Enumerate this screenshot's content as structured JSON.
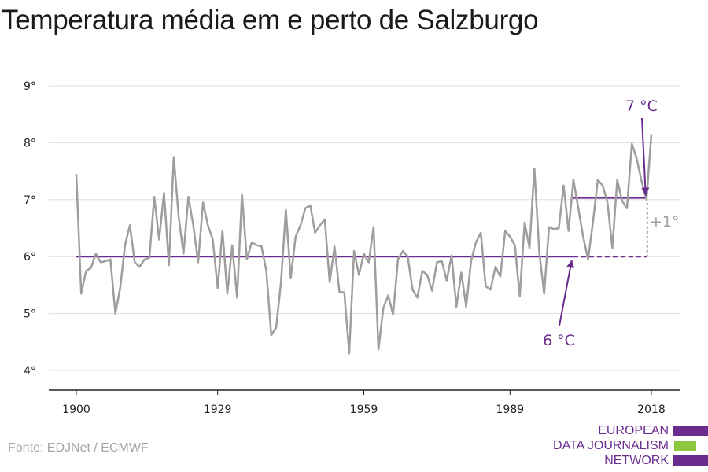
{
  "title": "Temperatura média em e perto de Salzburgo",
  "source": "Fonte: EDJNet / ECMWF",
  "logo": {
    "lines": [
      "EUROPEAN",
      "DATA JOURNALISM",
      "NETWORK"
    ],
    "colors": [
      "#6a2c8e",
      "#8dc63f",
      "#6a2c8e"
    ]
  },
  "colors": {
    "series": "#9e9e9e",
    "reference": "#6a2c8e",
    "grid": "#dddddd",
    "axis": "#222222"
  },
  "chart_data": {
    "type": "line",
    "title": "Temperatura média em e perto de Salzburgo",
    "xlabel": "",
    "ylabel": "",
    "xlim": [
      1900,
      2018
    ],
    "ylim": [
      4,
      9
    ],
    "x_ticks": [
      1900,
      1929,
      1959,
      1989,
      2018
    ],
    "y_ticks": [
      4,
      5,
      6,
      7,
      8,
      9
    ],
    "y_tick_suffix": "°",
    "grid": true,
    "legend": "none",
    "series": [
      {
        "color": "#9e9e9e",
        "x": [
          1900,
          1901,
          1902,
          1903,
          1904,
          1905,
          1906,
          1907,
          1908,
          1909,
          1910,
          1911,
          1912,
          1913,
          1914,
          1915,
          1916,
          1917,
          1918,
          1919,
          1920,
          1921,
          1922,
          1923,
          1924,
          1925,
          1926,
          1927,
          1928,
          1929,
          1930,
          1931,
          1932,
          1933,
          1934,
          1935,
          1936,
          1937,
          1938,
          1939,
          1940,
          1941,
          1942,
          1943,
          1944,
          1945,
          1946,
          1947,
          1948,
          1949,
          1950,
          1951,
          1952,
          1953,
          1954,
          1955,
          1956,
          1957,
          1958,
          1959,
          1960,
          1961,
          1962,
          1963,
          1964,
          1965,
          1966,
          1967,
          1968,
          1969,
          1970,
          1971,
          1972,
          1973,
          1974,
          1975,
          1976,
          1977,
          1978,
          1979,
          1980,
          1981,
          1982,
          1983,
          1984,
          1985,
          1986,
          1987,
          1988,
          1989,
          1990,
          1991,
          1992,
          1993,
          1994,
          1995,
          1996,
          1997,
          1998,
          1999,
          2000,
          2001,
          2002,
          2003,
          2004,
          2005,
          2006,
          2007,
          2008,
          2009,
          2010,
          2011,
          2012,
          2013,
          2014,
          2015,
          2016,
          2017,
          2018
        ],
        "values": [
          7.45,
          5.35,
          5.75,
          5.8,
          6.05,
          5.9,
          5.92,
          5.95,
          5.0,
          5.45,
          6.2,
          6.55,
          5.9,
          5.82,
          5.95,
          5.98,
          7.05,
          6.3,
          7.12,
          5.85,
          7.75,
          6.7,
          6.05,
          7.05,
          6.55,
          5.9,
          6.95,
          6.55,
          6.3,
          5.45,
          6.45,
          5.35,
          6.2,
          5.28,
          7.1,
          5.95,
          6.25,
          6.2,
          6.18,
          5.75,
          4.62,
          4.75,
          5.55,
          6.82,
          5.62,
          6.35,
          6.55,
          6.85,
          6.9,
          6.42,
          6.55,
          6.65,
          5.55,
          6.18,
          5.38,
          5.37,
          4.3,
          6.1,
          5.68,
          6.05,
          5.9,
          6.52,
          4.37,
          5.1,
          5.32,
          4.98,
          5.95,
          6.1,
          6.0,
          5.42,
          5.28,
          5.75,
          5.68,
          5.4,
          5.9,
          5.92,
          5.58,
          6.02,
          5.12,
          5.72,
          5.12,
          5.92,
          6.25,
          6.42,
          5.48,
          5.42,
          5.82,
          5.65,
          6.45,
          6.35,
          6.2,
          5.3,
          6.6,
          6.15,
          7.55,
          6.08,
          5.35,
          6.52,
          6.48,
          6.5,
          7.25,
          6.45,
          7.35,
          6.85,
          6.35,
          5.95,
          6.6,
          7.35,
          7.25,
          6.95,
          6.15,
          7.35,
          6.98,
          6.85,
          7.98,
          7.72,
          7.32,
          7.0,
          8.15
        ]
      }
    ],
    "reference_lines": [
      {
        "label": "6 °C",
        "value": 6,
        "x_start": 1900,
        "x_solid_end": 2002,
        "x_end": 2017
      },
      {
        "label": "7 °C",
        "value": 7.03,
        "x_start": 2002,
        "x_end": 2017
      }
    ],
    "annotations": [
      {
        "text": "7 °C",
        "color": "#6a2c8e",
        "arrow_to": [
          2017,
          7.03
        ]
      },
      {
        "text": "6 °C",
        "color": "#6a2c8e",
        "arrow_to": [
          2002,
          6.0
        ]
      },
      {
        "text": "+1°",
        "color": "#9e9e9e",
        "span": [
          6.0,
          7.0
        ],
        "x": 2017
      }
    ]
  }
}
